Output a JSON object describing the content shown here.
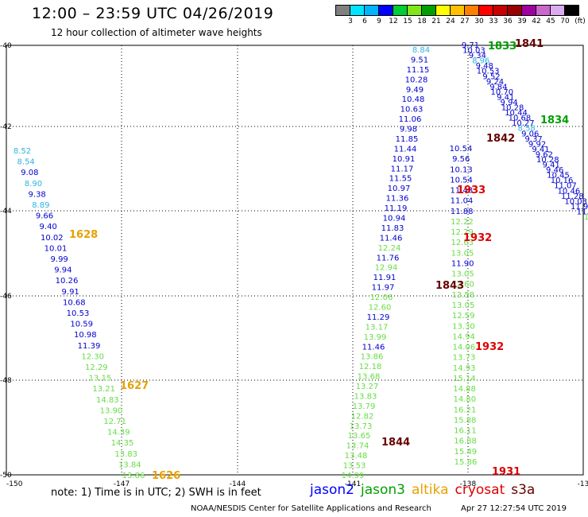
{
  "header": {
    "title": "12:00 – 23:59 UTC 04/26/2019",
    "subtitle": "12 hour collection of altimeter wave heights"
  },
  "colorbar": {
    "unit": "(ft)",
    "labels": [
      "3",
      "6",
      "9",
      "12",
      "15",
      "18",
      "21",
      "24",
      "27",
      "30",
      "33",
      "36",
      "39",
      "42",
      "45",
      "70"
    ],
    "colors": [
      "#808080",
      "#00e5ff",
      "#00b4ff",
      "#0000ff",
      "#00cc33",
      "#80e619",
      "#00a000",
      "#ffff00",
      "#ffc000",
      "#ff8000",
      "#ff0000",
      "#c80000",
      "#990000",
      "#a000a0",
      "#cc66cc",
      "#dcaaf0",
      "#000000"
    ]
  },
  "axes": {
    "lon_labels": [
      "-150",
      "-147",
      "-144",
      "-141",
      "-138",
      "-13"
    ],
    "lat_labels": [
      "-40",
      "-42",
      "-44",
      "-46",
      "-48",
      "-50"
    ]
  },
  "track_colors": {
    "8.84": "#2fb4e0",
    "8.52": "#2fb4e0",
    "8.54": "#2fb4e0",
    "8.90": "#2fb4e0",
    "8.89": "#2fb4e0",
    "8.58": "#2fb4e0",
    "8.96": "#2fb4e0",
    "dark": "#0000cc",
    "light": "#66dd44"
  },
  "tracks": {
    "left": [
      {
        "t": "8.52",
        "c": "#2fb4e0"
      },
      {
        "t": "8.54",
        "c": "#2fb4e0"
      },
      {
        "t": "9.08",
        "c": "#0000cc"
      },
      {
        "t": "8.90",
        "c": "#2fb4e0"
      },
      {
        "t": "9.38",
        "c": "#0000cc"
      },
      {
        "t": "8.89",
        "c": "#2fb4e0"
      },
      {
        "t": "9.66",
        "c": "#0000cc"
      },
      {
        "t": "9.40",
        "c": "#0000cc"
      },
      {
        "t": "10.02",
        "c": "#0000cc"
      },
      {
        "t": "10.01",
        "c": "#0000cc"
      },
      {
        "t": "9.99",
        "c": "#0000cc"
      },
      {
        "t": "9.94",
        "c": "#0000cc"
      },
      {
        "t": "10.26",
        "c": "#0000cc"
      },
      {
        "t": "9.91",
        "c": "#0000cc"
      },
      {
        "t": "10.68",
        "c": "#0000cc"
      },
      {
        "t": "10.53",
        "c": "#0000cc"
      },
      {
        "t": "10.59",
        "c": "#0000cc"
      },
      {
        "t": "10.98",
        "c": "#0000cc"
      },
      {
        "t": "11.39",
        "c": "#0000cc"
      },
      {
        "t": "12.30",
        "c": "#66dd44"
      },
      {
        "t": "12.29",
        "c": "#66dd44"
      },
      {
        "t": "13.15",
        "c": "#66dd44"
      },
      {
        "t": "13.21",
        "c": "#66dd44"
      },
      {
        "t": "14.83",
        "c": "#66dd44"
      },
      {
        "t": "13.90",
        "c": "#66dd44"
      },
      {
        "t": "12.71",
        "c": "#66dd44"
      },
      {
        "t": "14.39",
        "c": "#66dd44"
      },
      {
        "t": "14.35",
        "c": "#66dd44"
      },
      {
        "t": "13.83",
        "c": "#66dd44"
      },
      {
        "t": "13.84",
        "c": "#66dd44"
      },
      {
        "t": "13.86",
        "c": "#66dd44"
      }
    ],
    "middle": [
      {
        "t": "8.84",
        "c": "#2fb4e0"
      },
      {
        "t": "9.51",
        "c": "#0000cc"
      },
      {
        "t": "11.15",
        "c": "#0000cc"
      },
      {
        "t": "10.28",
        "c": "#0000cc"
      },
      {
        "t": "9.49",
        "c": "#0000cc"
      },
      {
        "t": "10.48",
        "c": "#0000cc"
      },
      {
        "t": "10.63",
        "c": "#0000cc"
      },
      {
        "t": "11.06",
        "c": "#0000cc"
      },
      {
        "t": "9.98",
        "c": "#0000cc"
      },
      {
        "t": "11.85",
        "c": "#0000cc"
      },
      {
        "t": "11.44",
        "c": "#0000cc"
      },
      {
        "t": "10.91",
        "c": "#0000cc"
      },
      {
        "t": "11.17",
        "c": "#0000cc"
      },
      {
        "t": "11.55",
        "c": "#0000cc"
      },
      {
        "t": "10.97",
        "c": "#0000cc"
      },
      {
        "t": "11.36",
        "c": "#0000cc"
      },
      {
        "t": "11.19",
        "c": "#0000cc"
      },
      {
        "t": "10.94",
        "c": "#0000cc"
      },
      {
        "t": "11.83",
        "c": "#0000cc"
      },
      {
        "t": "11.46",
        "c": "#0000cc"
      },
      {
        "t": "12.24",
        "c": "#66dd44"
      },
      {
        "t": "11.76",
        "c": "#0000cc"
      },
      {
        "t": "12.94",
        "c": "#66dd44"
      },
      {
        "t": "11.91",
        "c": "#0000cc"
      },
      {
        "t": "11.97",
        "c": "#0000cc"
      },
      {
        "t": "12.06",
        "c": "#66dd44"
      },
      {
        "t": "12.60",
        "c": "#66dd44"
      },
      {
        "t": "11.29",
        "c": "#0000cc"
      },
      {
        "t": "13.17",
        "c": "#66dd44"
      },
      {
        "t": "13.99",
        "c": "#66dd44"
      },
      {
        "t": "11.46",
        "c": "#0000cc"
      },
      {
        "t": "13.86",
        "c": "#66dd44"
      },
      {
        "t": "12.18",
        "c": "#66dd44"
      },
      {
        "t": "13.68",
        "c": "#66dd44"
      },
      {
        "t": "13.27",
        "c": "#66dd44"
      },
      {
        "t": "13.83",
        "c": "#66dd44"
      },
      {
        "t": "13.79",
        "c": "#66dd44"
      },
      {
        "t": "12.82",
        "c": "#66dd44"
      },
      {
        "t": "13.73",
        "c": "#66dd44"
      },
      {
        "t": "13.65",
        "c": "#66dd44"
      },
      {
        "t": "13.74",
        "c": "#66dd44"
      },
      {
        "t": "13.48",
        "c": "#66dd44"
      },
      {
        "t": "13.53",
        "c": "#66dd44"
      },
      {
        "t": "14.99",
        "c": "#66dd44"
      }
    ],
    "middle2": [
      {
        "t": "10.54",
        "c": "#0000cc"
      },
      {
        "t": "9.56",
        "c": "#0000cc"
      },
      {
        "t": "10.13",
        "c": "#0000cc"
      },
      {
        "t": "10.54",
        "c": "#0000cc"
      },
      {
        "t": "11.48",
        "c": "#0000cc"
      },
      {
        "t": "11.04",
        "c": "#0000cc"
      },
      {
        "t": "11.88",
        "c": "#0000cc"
      },
      {
        "t": "12.22",
        "c": "#66dd44"
      },
      {
        "t": "12.29",
        "c": "#66dd44"
      },
      {
        "t": "12.63",
        "c": "#66dd44"
      },
      {
        "t": "13.05",
        "c": "#66dd44"
      },
      {
        "t": "11.90",
        "c": "#0000cc"
      },
      {
        "t": "13.05",
        "c": "#66dd44"
      },
      {
        "t": "12.60",
        "c": "#66dd44"
      },
      {
        "t": "13.58",
        "c": "#66dd44"
      },
      {
        "t": "13.05",
        "c": "#66dd44"
      },
      {
        "t": "12.59",
        "c": "#66dd44"
      },
      {
        "t": "13.30",
        "c": "#66dd44"
      },
      {
        "t": "14.94",
        "c": "#66dd44"
      },
      {
        "t": "14.06",
        "c": "#66dd44"
      },
      {
        "t": "13.73",
        "c": "#66dd44"
      },
      {
        "t": "14.93",
        "c": "#66dd44"
      },
      {
        "t": "15.14",
        "c": "#66dd44"
      },
      {
        "t": "14.88",
        "c": "#66dd44"
      },
      {
        "t": "14.80",
        "c": "#66dd44"
      },
      {
        "t": "16.21",
        "c": "#66dd44"
      },
      {
        "t": "15.88",
        "c": "#66dd44"
      },
      {
        "t": "16.11",
        "c": "#66dd44"
      },
      {
        "t": "16.88",
        "c": "#66dd44"
      },
      {
        "t": "15.49",
        "c": "#66dd44"
      },
      {
        "t": "15.86",
        "c": "#66dd44"
      }
    ],
    "right": [
      {
        "t": "9.71",
        "c": "#0000cc"
      },
      {
        "t": "10.03",
        "c": "#0000cc"
      },
      {
        "t": "9.34",
        "c": "#0000cc"
      },
      {
        "t": "8.96",
        "c": "#2fb4e0"
      },
      {
        "t": "9.48",
        "c": "#0000cc"
      },
      {
        "t": "10.53",
        "c": "#0000cc"
      },
      {
        "t": "9.52",
        "c": "#0000cc"
      },
      {
        "t": "9.24",
        "c": "#0000cc"
      },
      {
        "t": "9.84",
        "c": "#0000cc"
      },
      {
        "t": "10.70",
        "c": "#0000cc"
      },
      {
        "t": "9.41",
        "c": "#0000cc"
      },
      {
        "t": "9.94",
        "c": "#0000cc"
      },
      {
        "t": "10.28",
        "c": "#0000cc"
      },
      {
        "t": "10.44",
        "c": "#0000cc"
      },
      {
        "t": "10.68",
        "c": "#0000cc"
      },
      {
        "t": "10.27",
        "c": "#0000cc"
      },
      {
        "t": "8.58",
        "c": "#2fb4e0"
      },
      {
        "t": "9.06",
        "c": "#0000cc"
      },
      {
        "t": "9.37",
        "c": "#0000cc"
      },
      {
        "t": "9.92",
        "c": "#0000cc"
      },
      {
        "t": "9.41",
        "c": "#0000cc"
      },
      {
        "t": "9.62",
        "c": "#0000cc"
      },
      {
        "t": "10.28",
        "c": "#0000cc"
      },
      {
        "t": "9.41",
        "c": "#0000cc"
      },
      {
        "t": "9.46",
        "c": "#0000cc"
      },
      {
        "t": "10.45",
        "c": "#0000cc"
      },
      {
        "t": "10.16",
        "c": "#0000cc"
      },
      {
        "t": "11.07",
        "c": "#0000cc"
      },
      {
        "t": "10.46",
        "c": "#0000cc"
      },
      {
        "t": "11.28",
        "c": "#0000cc"
      },
      {
        "t": "10.03",
        "c": "#0000cc"
      },
      {
        "t": "11.9",
        "c": "#0000cc"
      },
      {
        "t": "11.",
        "c": "#0000cc"
      },
      {
        "t": "1",
        "c": "#66dd44"
      }
    ]
  },
  "time_labels": [
    {
      "t": "1628",
      "c": "#e8a000"
    },
    {
      "t": "1627",
      "c": "#e8a000"
    },
    {
      "t": "1626",
      "c": "#e8a000"
    },
    {
      "t": "1933",
      "c": "#dd0000"
    },
    {
      "t": "1932",
      "c": "#dd0000"
    },
    {
      "t": "1843",
      "c": "#660000"
    },
    {
      "t": "1932",
      "c": "#dd0000"
    },
    {
      "t": "1844",
      "c": "#660000"
    },
    {
      "t": "1931",
      "c": "#dd0000"
    },
    {
      "t": "1842",
      "c": "#660000"
    },
    {
      "t": "1841",
      "c": "#660000"
    },
    {
      "t": "1834",
      "c": "#00a000"
    },
    {
      "t": "1833",
      "c": "#00a000"
    }
  ],
  "note": "note:  1) Time is in UTC;  2) SWH is in feet",
  "legend": [
    {
      "t": "jason2",
      "c": "#0000ff"
    },
    {
      "t": "jason3",
      "c": "#00a000"
    },
    {
      "t": "altika",
      "c": "#e8a000"
    },
    {
      "t": "cryosat",
      "c": "#dd0000"
    },
    {
      "t": "s3a",
      "c": "#660000"
    }
  ],
  "footer": {
    "org": "NOAA/NESDIS Center for Satellite Applications and Research",
    "time": "Apr 27 12:27:54 UTC 2019"
  }
}
